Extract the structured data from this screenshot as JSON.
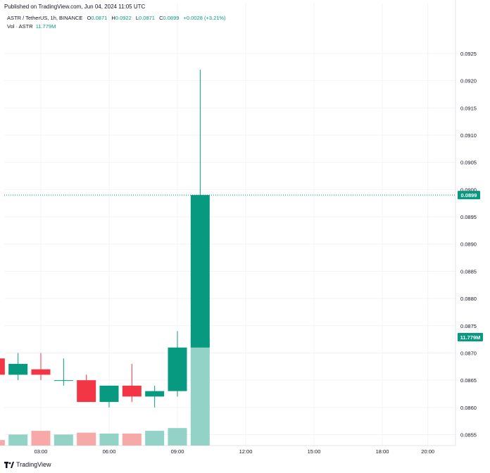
{
  "header": {
    "published": "Published on TradingView.com, Jun 04, 2024 11:05 UTC",
    "symbol": "ASTR / TetherUS, 1h, BINANCE",
    "o_label": "O",
    "o_value": "0.0871",
    "h_label": "H",
    "h_value": "0.0922",
    "l_label": "L",
    "l_value": "0.0871",
    "c_label": "C",
    "c_value": "0.0899",
    "change": "+0.0028 (+3.21%)",
    "vol_label": "Vol · ASTR",
    "vol_value": "11.779M"
  },
  "footer": {
    "brand": "TradingView"
  },
  "colors": {
    "up": "#089981",
    "down": "#f23645",
    "vol_up": "#92d2c7",
    "vol_down": "#f7a9a7",
    "grid": "#f0f3fa",
    "axis_text": "#131722"
  },
  "chart_data": {
    "type": "candlestick",
    "x_ticks": [
      "03:00",
      "06:00",
      "09:00",
      "12:00",
      "15:00",
      "18:00",
      "20:00"
    ],
    "y_ticks": [
      "0.0855",
      "0.0860",
      "0.0865",
      "0.0870",
      "0.0875",
      "0.0880",
      "0.0885",
      "0.0890",
      "0.0895",
      "0.0900",
      "0.0905",
      "0.0910",
      "0.0915",
      "0.0920",
      "0.0925"
    ],
    "ylim": [
      0.0853,
      0.0929
    ],
    "candles": [
      {
        "time": "01:00",
        "open": 0.0869,
        "high": 0.0869,
        "low": 0.0865,
        "close": 0.0866,
        "volume": 0.6
      },
      {
        "time": "02:00",
        "open": 0.0866,
        "high": 0.087,
        "low": 0.0865,
        "close": 0.0868,
        "volume": 1.2
      },
      {
        "time": "03:00",
        "open": 0.0867,
        "high": 0.087,
        "low": 0.0865,
        "close": 0.0866,
        "volume": 1.6
      },
      {
        "time": "04:00",
        "open": 0.0865,
        "high": 0.0869,
        "low": 0.0864,
        "close": 0.0865,
        "volume": 1.2
      },
      {
        "time": "05:00",
        "open": 0.0865,
        "high": 0.0866,
        "low": 0.0861,
        "close": 0.0861,
        "volume": 1.4
      },
      {
        "time": "06:00",
        "open": 0.0861,
        "high": 0.0864,
        "low": 0.086,
        "close": 0.0864,
        "volume": 1.3
      },
      {
        "time": "07:00",
        "open": 0.0864,
        "high": 0.0868,
        "low": 0.0861,
        "close": 0.0862,
        "volume": 1.3
      },
      {
        "time": "08:00",
        "open": 0.0862,
        "high": 0.0864,
        "low": 0.086,
        "close": 0.0863,
        "volume": 1.6
      },
      {
        "time": "09:00",
        "open": 0.0863,
        "high": 0.0874,
        "low": 0.0862,
        "close": 0.0871,
        "volume": 1.9
      },
      {
        "time": "10:00",
        "open": 0.0871,
        "high": 0.0922,
        "low": 0.0871,
        "close": 0.0899,
        "volume": 11.779
      }
    ],
    "extra_volume_left": 1.0,
    "last_price": "0.0899",
    "last_volume_label": "11.779M",
    "grid": true
  }
}
